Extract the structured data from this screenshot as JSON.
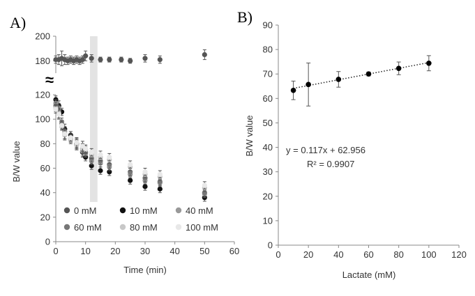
{
  "panel_a_letter": "A)",
  "panel_b_letter": "B)",
  "chart_data": [
    {
      "id": "A",
      "type": "scatter",
      "xlabel": "Time (min)",
      "ylabel": "B/W value",
      "xlim": [
        0,
        60
      ],
      "xticks": [
        0,
        10,
        20,
        30,
        40,
        50,
        60
      ],
      "lower_ylim": [
        0,
        120
      ],
      "lower_yticks": [
        0,
        20,
        40,
        60,
        80,
        100,
        120
      ],
      "upper_ylim": [
        170,
        200
      ],
      "upper_yticks": [
        180,
        200
      ],
      "axis_break_symbol": "≈",
      "highlight_band_x": [
        11.5,
        14
      ],
      "legend_placement": "bottom-left",
      "series": [
        {
          "name": "0 mM",
          "color": "#555555",
          "x": [
            0,
            1,
            2,
            3,
            4,
            5,
            6,
            7,
            8,
            9,
            10,
            12,
            15,
            18,
            22,
            25,
            30,
            35,
            50
          ],
          "y": [
            181,
            181,
            182,
            181,
            180,
            181,
            180,
            181,
            180,
            181,
            184,
            182,
            181,
            181,
            181,
            180,
            182,
            181,
            185
          ],
          "err": [
            3,
            4,
            6,
            4,
            3,
            3,
            3,
            3,
            3,
            3,
            4,
            3,
            2,
            2,
            2,
            2,
            3,
            3,
            4
          ]
        },
        {
          "name": "10 mM",
          "color": "#111111",
          "x": [
            0,
            1,
            2,
            3,
            5,
            7,
            9,
            10,
            12,
            15,
            18,
            25,
            30,
            35,
            50
          ],
          "y": [
            116,
            111,
            106,
            92,
            87,
            80,
            73,
            69,
            62,
            58,
            57,
            50,
            45,
            43,
            36
          ],
          "err": [
            3,
            4,
            3,
            4,
            3,
            4,
            4,
            3,
            3,
            3,
            3,
            3,
            3,
            3,
            3
          ]
        },
        {
          "name": "40 mM",
          "color": "#999999",
          "x": [
            0,
            1,
            2,
            3,
            5,
            7,
            9,
            10,
            12,
            15,
            18,
            25,
            30,
            35,
            50
          ],
          "y": [
            113,
            109,
            98,
            90,
            85,
            79,
            74,
            72,
            66,
            64,
            61,
            55,
            50,
            48,
            39
          ],
          "err": [
            3,
            4,
            3,
            4,
            3,
            4,
            4,
            3,
            3,
            3,
            3,
            3,
            3,
            3,
            3
          ]
        },
        {
          "name": "60 mM",
          "color": "#777777",
          "x": [
            0,
            1,
            2,
            3,
            5,
            7,
            9,
            10,
            12,
            15,
            18,
            25,
            30,
            35,
            50
          ],
          "y": [
            111,
            107,
            96,
            88,
            84,
            80,
            76,
            73,
            68,
            66,
            63,
            57,
            52,
            49,
            40
          ],
          "err": [
            3,
            4,
            3,
            4,
            3,
            4,
            4,
            3,
            3,
            3,
            3,
            3,
            3,
            3,
            3
          ]
        },
        {
          "name": "80 mM",
          "color": "#c8c8c8",
          "x": [
            0,
            1,
            2,
            3,
            5,
            7,
            9,
            10,
            12,
            15,
            18,
            25,
            30,
            35,
            50
          ],
          "y": [
            109,
            105,
            94,
            87,
            83,
            79,
            76,
            75,
            71,
            69,
            67,
            61,
            55,
            53,
            44
          ],
          "err": [
            3,
            4,
            3,
            4,
            3,
            4,
            4,
            3,
            3,
            3,
            3,
            3,
            3,
            3,
            3
          ]
        },
        {
          "name": "100 mM",
          "color": "#e8e8e8",
          "x": [
            0,
            1,
            2,
            3,
            5,
            7,
            9,
            10,
            12,
            15,
            18,
            25,
            30,
            35,
            50
          ],
          "y": [
            108,
            104,
            95,
            88,
            85,
            81,
            78,
            76,
            73,
            71,
            69,
            63,
            57,
            55,
            46
          ],
          "err": [
            3,
            4,
            3,
            4,
            3,
            4,
            4,
            3,
            3,
            3,
            3,
            3,
            3,
            3,
            3
          ]
        }
      ]
    },
    {
      "id": "B",
      "type": "scatter",
      "xlabel": "Lactate (mM)",
      "ylabel": "B/W value",
      "xlim": [
        0,
        120
      ],
      "xticks": [
        0,
        20,
        40,
        60,
        80,
        100,
        120
      ],
      "ylim": [
        0,
        90
      ],
      "yticks": [
        0,
        10,
        20,
        30,
        40,
        50,
        60,
        70,
        80,
        90
      ],
      "grid": false,
      "series": [
        {
          "x": [
            10,
            20,
            40,
            60,
            80,
            100
          ],
          "y": [
            63.3,
            65.7,
            67.8,
            70.0,
            72.3,
            74.4
          ],
          "err": [
            3.8,
            8.8,
            3.2,
            0.8,
            2.6,
            3.1
          ],
          "color": "#000000"
        }
      ],
      "trendline": {
        "slope": 0.117,
        "intercept": 62.956,
        "style": "dotted"
      },
      "equation": "y = 0.117x + 62.956",
      "r_squared": "R² = 0.9907"
    }
  ]
}
